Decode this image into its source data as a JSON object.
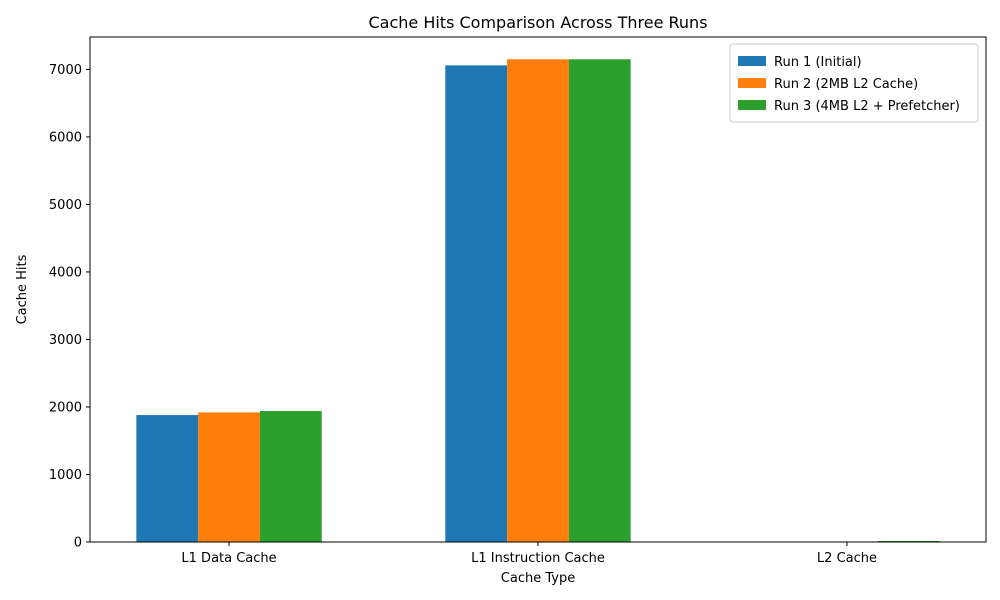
{
  "chart_data": {
    "type": "bar",
    "title": "Cache Hits Comparison Across Three Runs",
    "xlabel": "Cache Type",
    "ylabel": "Cache Hits",
    "categories": [
      "L1 Data Cache",
      "L1 Instruction Cache",
      "L2 Cache"
    ],
    "series": [
      {
        "name": "Run 1 (Initial)",
        "color": "#1f77b4",
        "values": [
          1880,
          7060,
          0
        ]
      },
      {
        "name": "Run 2 (2MB L2 Cache)",
        "color": "#ff7f0e",
        "values": [
          1920,
          7150,
          0
        ]
      },
      {
        "name": "Run 3 (4MB L2 + Prefetcher)",
        "color": "#2ca02c",
        "values": [
          1940,
          7150,
          15
        ]
      }
    ],
    "ylim": [
      0,
      7480
    ],
    "yticks": [
      0,
      1000,
      2000,
      3000,
      4000,
      5000,
      6000,
      7000
    ],
    "grid": false,
    "legend_position": "top-right"
  }
}
